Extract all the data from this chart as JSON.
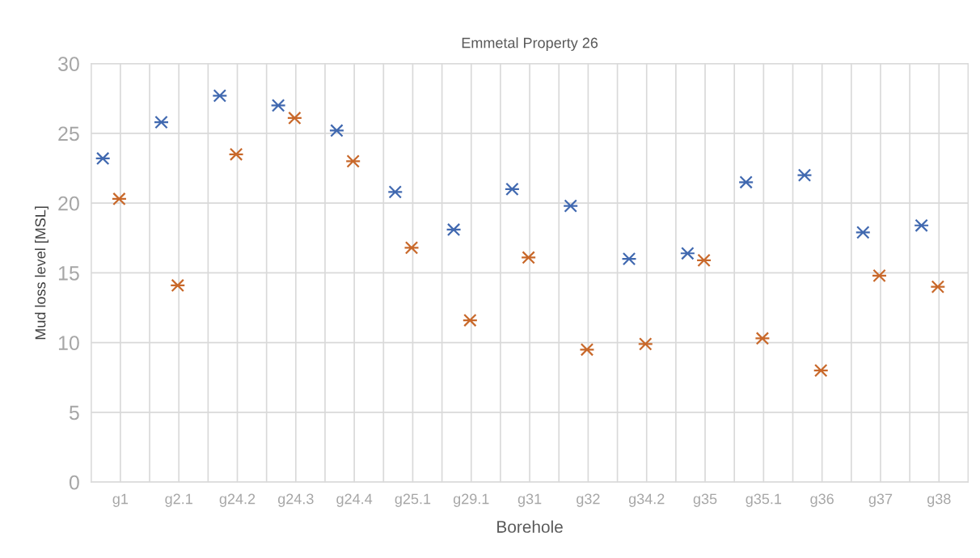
{
  "chart_data": {
    "type": "scatter",
    "title": "Emmetal Property 26",
    "xlabel": "Borehole",
    "ylabel": "Mud loss level [MSL]",
    "categories": [
      "g1",
      "g2.1",
      "g24.2",
      "g24.3",
      "g24.4",
      "g25.1",
      "g29.1",
      "g31",
      "g32",
      "g34.2",
      "g35",
      "g35.1",
      "g36",
      "g37",
      "g38"
    ],
    "series": [
      {
        "color": "#4169b0",
        "values": [
          23.2,
          25.8,
          27.7,
          27.0,
          25.2,
          20.8,
          18.1,
          21.0,
          19.8,
          16.0,
          16.4,
          21.5,
          22.0,
          17.9,
          18.4
        ]
      },
      {
        "color": "#c8682a",
        "values": [
          20.3,
          14.1,
          23.5,
          26.1,
          23.0,
          16.8,
          11.6,
          16.1,
          9.5,
          9.9,
          15.9,
          10.3,
          8.0,
          14.8,
          14.0
        ]
      }
    ],
    "ylim": [
      0,
      30
    ],
    "yticks": [
      0,
      5,
      10,
      15,
      20,
      25,
      30
    ],
    "grid": true,
    "marker": "cross",
    "legend": false
  }
}
